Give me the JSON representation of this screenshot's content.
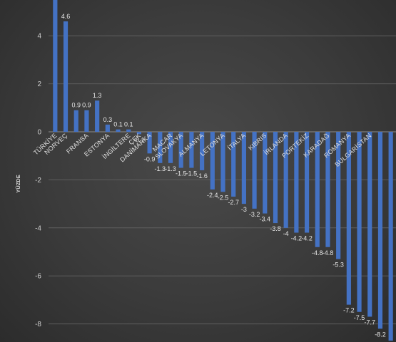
{
  "chart_data": {
    "type": "bar",
    "ylabel": "YÜZDE",
    "ylim": [
      -8.7,
      5.5
    ],
    "yticks": [
      4,
      2,
      0,
      -2,
      -4,
      -6,
      -8
    ],
    "grid": true,
    "bar_color": "#4472c4",
    "categories": [
      "TÜRKİYE",
      "NORVEÇ",
      "",
      "FRANSA",
      "",
      "ESTONYA",
      "",
      "İNGİLTERE",
      "ÇEK",
      "DANİMARKA",
      "",
      "MACAR",
      "SLOVAKYA",
      "",
      "ALMANYA",
      "",
      "LETONYA",
      "",
      "İTALYA",
      "",
      "KIBRIS",
      "",
      "İRLANDA",
      "",
      "PORTEKİZ",
      "",
      "KARADAĞ",
      "",
      "ROMANYA",
      "",
      "BULGARİSTAN",
      "",
      ""
    ],
    "values": [
      5.5,
      4.6,
      0.9,
      0.9,
      1.3,
      0.3,
      0.1,
      0.1,
      -0.1,
      -0.9,
      -1.3,
      -1.3,
      -1.5,
      -1.5,
      -1.6,
      -2.4,
      -2.5,
      -2.7,
      -3.0,
      -3.2,
      -3.4,
      -3.8,
      -4.0,
      -4.2,
      -4.2,
      -4.8,
      -4.8,
      -5.3,
      -7.2,
      -7.5,
      -7.7,
      -8.2,
      -8.7
    ],
    "data_labels": [
      "",
      "4.6",
      "0.9",
      "0.9",
      "1.3",
      "0.3",
      "0.1",
      "0.1",
      "-0.1",
      "-0.9",
      "-1.3",
      "-1.3",
      "-1.5",
      "-1.5",
      "-1.6",
      "-2.4",
      "-2.5",
      "-2.7",
      "-3",
      "-3.2",
      "-3.4",
      "-3.8",
      "-4",
      "-4.2",
      "-4.2",
      "-4.8",
      "-4.8",
      "-5.3",
      "-7.2",
      "-7.5",
      "-7.7",
      "-8.2",
      ""
    ]
  }
}
